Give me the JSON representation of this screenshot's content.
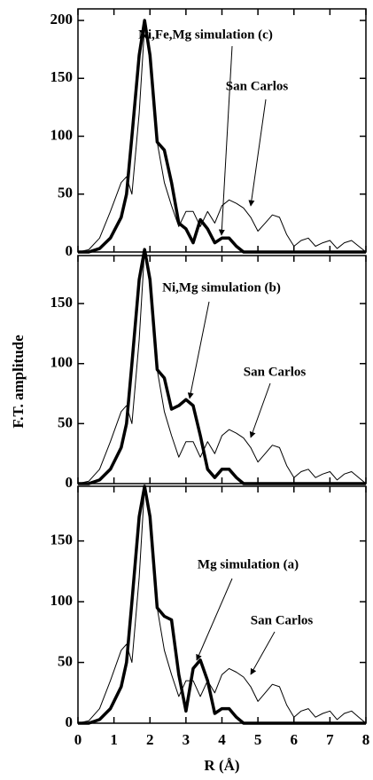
{
  "chart_data": [
    {
      "type": "line",
      "xlim": [
        0,
        8
      ],
      "ylim": [
        0,
        210
      ],
      "yticks": [
        0,
        50,
        100,
        150,
        200
      ],
      "x": [
        0,
        0.3,
        0.6,
        0.9,
        1.2,
        1.35,
        1.5,
        1.7,
        1.85,
        2.0,
        2.2,
        2.4,
        2.6,
        2.8,
        3.0,
        3.2,
        3.4,
        3.6,
        3.8,
        4.0,
        4.2,
        4.4,
        4.6,
        4.8,
        5.0,
        5.2,
        5.4,
        5.6,
        5.8,
        6.0,
        6.2,
        6.4,
        6.6,
        6.8,
        7.0,
        7.2,
        7.4,
        7.6,
        7.8,
        8.0
      ],
      "series": [
        {
          "name": "San Carlos",
          "color": "#000000",
          "linewidth": 1,
          "values": [
            0,
            2,
            12,
            35,
            60,
            65,
            50,
            120,
            195,
            170,
            95,
            60,
            40,
            22,
            35,
            35,
            22,
            35,
            25,
            40,
            45,
            42,
            38,
            30,
            18,
            25,
            32,
            30,
            15,
            5,
            10,
            12,
            5,
            8,
            10,
            3,
            8,
            10,
            5,
            0
          ]
        },
        {
          "name": "Ni,Fe,Mg simulation (c)",
          "color": "#000000",
          "linewidth": 3.5,
          "values": [
            0,
            0,
            3,
            12,
            30,
            50,
            100,
            170,
            200,
            170,
            95,
            88,
            60,
            25,
            20,
            8,
            28,
            20,
            8,
            12,
            12,
            5,
            0,
            0,
            0,
            0,
            0,
            0,
            0,
            0,
            0,
            0,
            0,
            0,
            0,
            0,
            0,
            0,
            0,
            0
          ]
        }
      ]
    },
    {
      "type": "line",
      "xlim": [
        0,
        8
      ],
      "ylim": [
        0,
        190
      ],
      "yticks": [
        0,
        50,
        100,
        150
      ],
      "ylabel": "F.T. amplitude",
      "x": [
        0,
        0.3,
        0.6,
        0.9,
        1.2,
        1.35,
        1.5,
        1.7,
        1.85,
        2.0,
        2.2,
        2.4,
        2.6,
        2.8,
        3.0,
        3.2,
        3.4,
        3.6,
        3.8,
        4.0,
        4.2,
        4.4,
        4.6,
        4.8,
        5.0,
        5.2,
        5.4,
        5.6,
        5.8,
        6.0,
        6.2,
        6.4,
        6.6,
        6.8,
        7.0,
        7.2,
        7.4,
        7.6,
        7.8,
        8.0
      ],
      "series": [
        {
          "name": "San Carlos",
          "color": "#000000",
          "linewidth": 1,
          "values": [
            0,
            2,
            12,
            35,
            60,
            65,
            50,
            120,
            195,
            170,
            95,
            60,
            40,
            22,
            35,
            35,
            22,
            35,
            25,
            40,
            45,
            42,
            38,
            30,
            18,
            25,
            32,
            30,
            15,
            5,
            10,
            12,
            5,
            8,
            10,
            3,
            8,
            10,
            5,
            0
          ]
        },
        {
          "name": "Ni,Mg simulation (b)",
          "color": "#000000",
          "linewidth": 3.5,
          "values": [
            0,
            0,
            3,
            12,
            30,
            50,
            100,
            170,
            195,
            170,
            95,
            88,
            62,
            65,
            70,
            65,
            40,
            12,
            5,
            12,
            12,
            5,
            0,
            0,
            0,
            0,
            0,
            0,
            0,
            0,
            0,
            0,
            0,
            0,
            0,
            0,
            0,
            0,
            0,
            0
          ]
        }
      ]
    },
    {
      "type": "line",
      "xlim": [
        0,
        8
      ],
      "ylim": [
        0,
        195
      ],
      "yticks": [
        0,
        50,
        100,
        150
      ],
      "xticks": [
        0,
        1,
        2,
        3,
        4,
        5,
        6,
        7,
        8
      ],
      "xlabel": "R (Å)",
      "x": [
        0,
        0.3,
        0.6,
        0.9,
        1.2,
        1.35,
        1.5,
        1.7,
        1.85,
        2.0,
        2.2,
        2.4,
        2.6,
        2.8,
        3.0,
        3.2,
        3.4,
        3.6,
        3.8,
        4.0,
        4.2,
        4.4,
        4.6,
        4.8,
        5.0,
        5.2,
        5.4,
        5.6,
        5.8,
        6.0,
        6.2,
        6.4,
        6.6,
        6.8,
        7.0,
        7.2,
        7.4,
        7.6,
        7.8,
        8.0
      ],
      "series": [
        {
          "name": "San Carlos",
          "color": "#000000",
          "linewidth": 1,
          "values": [
            0,
            2,
            12,
            35,
            60,
            65,
            50,
            120,
            195,
            170,
            95,
            60,
            40,
            22,
            35,
            35,
            22,
            35,
            25,
            40,
            45,
            42,
            38,
            30,
            18,
            25,
            32,
            30,
            15,
            5,
            10,
            12,
            5,
            8,
            10,
            3,
            8,
            10,
            5,
            0
          ]
        },
        {
          "name": "Mg simulation (a)",
          "color": "#000000",
          "linewidth": 3.5,
          "values": [
            0,
            0,
            3,
            12,
            30,
            50,
            100,
            170,
            195,
            170,
            95,
            88,
            85,
            40,
            10,
            45,
            52,
            35,
            8,
            12,
            12,
            5,
            0,
            0,
            0,
            0,
            0,
            0,
            0,
            0,
            0,
            0,
            0,
            0,
            0,
            0,
            0,
            0,
            0,
            0
          ]
        }
      ]
    }
  ]
}
